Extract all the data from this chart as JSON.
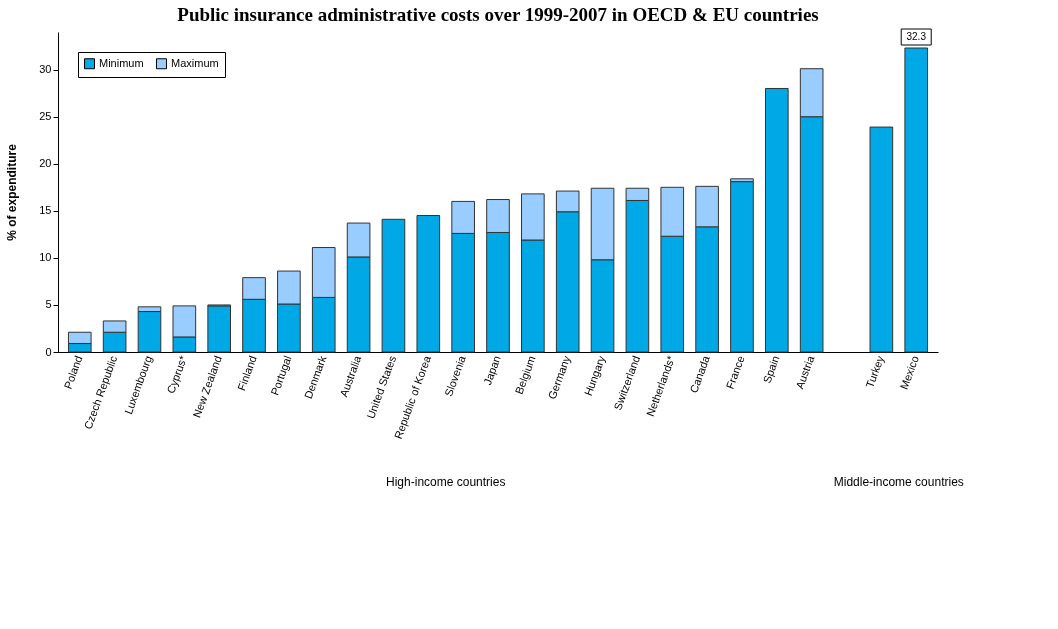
{
  "chart_data": {
    "type": "bar",
    "title": "Public insurance administrative costs over 1999-2007 in OECD & EU countries",
    "ylabel": "% of expenditure",
    "categories": [
      "Poland",
      "Czech Republic",
      "Luxembourg",
      "Cyprus*",
      "New Zealand",
      "Finland",
      "Portugal",
      "Denmark",
      "Australia",
      "United States",
      "Republic of Korea",
      "Slovenia",
      "Japan",
      "Belgium",
      "Germany",
      "Hungary",
      "Switzerland",
      "Netherlands*",
      "Canada",
      "France",
      "Spain",
      "Austria",
      null,
      "Turkey",
      "Mexico"
    ],
    "stacked": true,
    "series": [
      {
        "name": "Minimum",
        "color": "#00a9e6",
        "values": [
          0.9,
          2.1,
          4.3,
          1.6,
          4.9,
          5.6,
          5.1,
          5.8,
          10.1,
          14.1,
          14.5,
          12.6,
          12.7,
          11.9,
          14.9,
          9.8,
          16.1,
          12.3,
          13.3,
          18.1,
          28.0,
          25.0,
          null,
          23.9,
          32.3
        ],
        "value_labels": [
          null,
          null,
          null,
          null,
          null,
          null,
          null,
          null,
          null,
          null,
          null,
          null,
          null,
          null,
          null,
          null,
          null,
          null,
          null,
          null,
          null,
          null,
          null,
          null,
          "32.3"
        ]
      },
      {
        "name": "Maximum",
        "color": "#99ccff",
        "values": [
          1.2,
          1.2,
          0.5,
          3.3,
          0.1,
          2.3,
          3.5,
          5.3,
          3.6,
          null,
          null,
          3.4,
          3.5,
          4.9,
          2.2,
          7.6,
          1.3,
          5.2,
          4.3,
          0.3,
          null,
          5.1,
          null,
          null,
          null
        ]
      }
    ],
    "ylim": [
      0,
      34
    ],
    "yticks": [
      0,
      5,
      10,
      15,
      20,
      25,
      30
    ],
    "grid": false,
    "legend": "top left",
    "annotations": [
      "High-income countries",
      "Middle-income countries"
    ]
  }
}
